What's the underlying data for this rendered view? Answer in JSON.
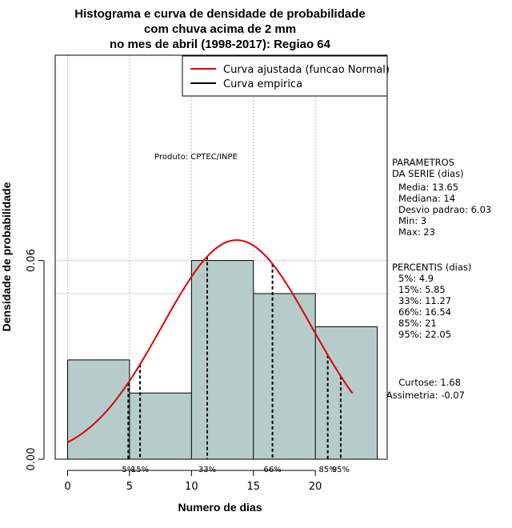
{
  "chart_data": {
    "type": "bar",
    "title_lines": [
      "Histograma e curva de densidade de probabilidade",
      "com chuva acima de 2 mm",
      "no mes de abril (1998-2017): Regiao 64"
    ],
    "xlabel": "Numero de dias",
    "ylabel": "Densidade de probabilidade",
    "xlim": [
      -1,
      25.8
    ],
    "ylim": [
      0,
      0.122
    ],
    "x_ticks": [
      0,
      5,
      10,
      15,
      20
    ],
    "y_ticks": [
      0.0,
      0.06
    ],
    "y_tick_labels": [
      "0.00",
      "0.06"
    ],
    "hline_reference": 0.05,
    "bins": [
      {
        "x0": 0,
        "x1": 5,
        "density": 0.03
      },
      {
        "x0": 5,
        "x1": 10,
        "density": 0.02
      },
      {
        "x0": 10,
        "x1": 15,
        "density": 0.06
      },
      {
        "x0": 15,
        "x1": 20,
        "density": 0.05
      },
      {
        "x0": 20,
        "x1": 25,
        "density": 0.04
      }
    ],
    "normal_curve": {
      "mean": 13.65,
      "sd": 6.03,
      "x_from": 0,
      "x_to": 23
    },
    "percentile_lines": [
      {
        "label": "5%",
        "x": 4.9
      },
      {
        "label": "15%",
        "x": 5.85
      },
      {
        "label": "33%",
        "x": 11.27
      },
      {
        "label": "66%",
        "x": 16.54
      },
      {
        "label": "85%",
        "x": 21
      },
      {
        "label": "95%",
        "x": 22.05
      }
    ],
    "legend": {
      "placement": "top-right",
      "entries": [
        {
          "label": "Curva ajustada (funcao Normal)",
          "color": "#dd0000"
        },
        {
          "label": "Curva empirica",
          "color": "#000000"
        }
      ]
    },
    "annotation": "Produto: CPTEC/INPE",
    "parameters": {
      "heading_lines": [
        "PARAMETROS",
        "DA SERIE (dias)"
      ],
      "items": [
        "Media: 13.65",
        "Mediana: 14",
        "Desvio padrao: 6.03",
        "Min: 3",
        "Max: 23"
      ]
    },
    "percentis": {
      "heading": "PERCENTIS (dias)",
      "items": [
        "5%: 4.9",
        "15%: 5.85",
        "33%: 11.27",
        "66%: 16.54",
        "85%: 21",
        "95%: 22.05"
      ]
    },
    "shape_stats": [
      "Curtose: 1.68",
      "Assimetria: -0.07"
    ],
    "colors": {
      "bar_fill": "#b5cccb",
      "curve": "#dd0000",
      "grid": "#bbbbbb"
    }
  }
}
